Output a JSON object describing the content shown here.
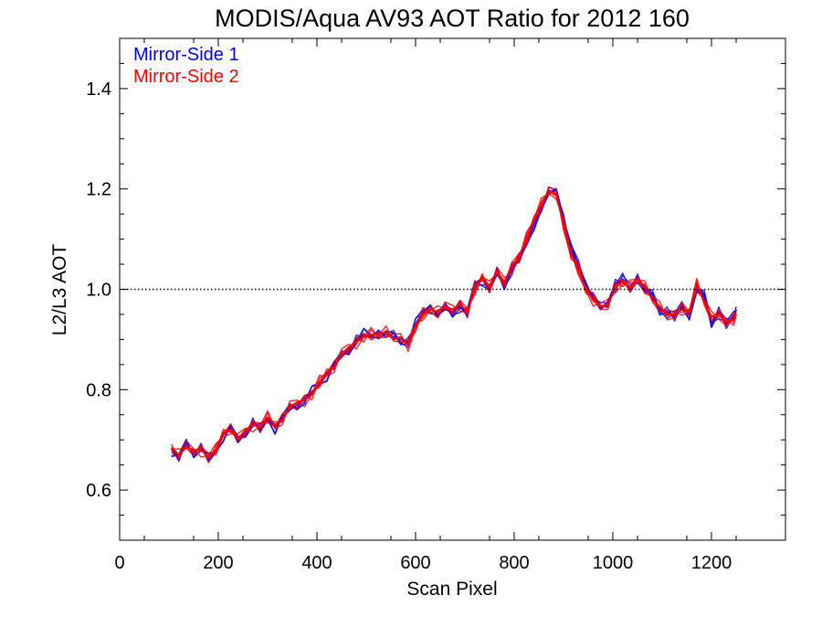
{
  "chart_data": {
    "type": "line",
    "title": "MODIS/Aqua AV93 AOT Ratio for 2012 160",
    "xlabel": "Scan Pixel",
    "ylabel": "L2/L3 AOT",
    "xlim": [
      0,
      1350
    ],
    "ylim": [
      0.5,
      1.5
    ],
    "xticks": [
      0,
      200,
      400,
      600,
      800,
      1000,
      1200
    ],
    "xtick_labels": [
      "0",
      "200",
      "400",
      "600",
      "800",
      "1000",
      "1200"
    ],
    "yticks": [
      0.6,
      0.8,
      1.0,
      1.2,
      1.4
    ],
    "ytick_labels": [
      "0.6",
      "0.8",
      "1.0",
      "1.2",
      "1.4"
    ],
    "reference_line": {
      "y": 1.0,
      "style": "dotted"
    },
    "grid": false,
    "legend_position": "top-left",
    "x": [
      105,
      120,
      135,
      150,
      165,
      180,
      195,
      210,
      225,
      240,
      255,
      270,
      285,
      300,
      315,
      330,
      345,
      360,
      375,
      390,
      405,
      420,
      435,
      450,
      465,
      480,
      495,
      510,
      525,
      540,
      555,
      570,
      585,
      600,
      615,
      630,
      645,
      660,
      675,
      690,
      705,
      720,
      735,
      750,
      765,
      780,
      795,
      810,
      825,
      840,
      855,
      870,
      885,
      900,
      915,
      930,
      945,
      960,
      975,
      990,
      1005,
      1020,
      1035,
      1050,
      1065,
      1080,
      1095,
      1110,
      1125,
      1140,
      1155,
      1170,
      1185,
      1200,
      1215,
      1230,
      1245,
      1250
    ],
    "series": [
      {
        "name": "Mirror-Side 1",
        "color": "#0000ff",
        "values": [
          0.68,
          0.665,
          0.69,
          0.675,
          0.685,
          0.66,
          0.675,
          0.71,
          0.725,
          0.695,
          0.715,
          0.735,
          0.72,
          0.74,
          0.725,
          0.745,
          0.76,
          0.77,
          0.78,
          0.795,
          0.81,
          0.83,
          0.85,
          0.865,
          0.88,
          0.9,
          0.91,
          0.905,
          0.915,
          0.91,
          0.905,
          0.9,
          0.895,
          0.93,
          0.955,
          0.965,
          0.95,
          0.96,
          0.955,
          0.965,
          0.95,
          1.01,
          1.02,
          1.0,
          1.03,
          1.01,
          1.04,
          1.06,
          1.09,
          1.13,
          1.16,
          1.19,
          1.2,
          1.14,
          1.08,
          1.05,
          1.01,
          0.985,
          0.96,
          0.975,
          1.01,
          1.02,
          1.0,
          1.025,
          1.0,
          0.985,
          0.96,
          0.955,
          0.945,
          0.965,
          0.95,
          1.0,
          0.985,
          0.935,
          0.955,
          0.93,
          0.945,
          0.96
        ]
      },
      {
        "name": "Mirror-Side 2",
        "color": "#ff0000",
        "values": [
          0.685,
          0.67,
          0.685,
          0.68,
          0.68,
          0.665,
          0.68,
          0.715,
          0.72,
          0.7,
          0.72,
          0.73,
          0.725,
          0.745,
          0.73,
          0.74,
          0.765,
          0.775,
          0.78,
          0.79,
          0.815,
          0.835,
          0.845,
          0.87,
          0.885,
          0.895,
          0.905,
          0.91,
          0.91,
          0.915,
          0.9,
          0.905,
          0.89,
          0.925,
          0.95,
          0.96,
          0.955,
          0.965,
          0.96,
          0.97,
          0.955,
          1.0,
          1.025,
          1.005,
          1.035,
          1.015,
          1.045,
          1.065,
          1.1,
          1.14,
          1.17,
          1.195,
          1.19,
          1.13,
          1.07,
          1.04,
          1.0,
          0.98,
          0.965,
          0.97,
          1.005,
          1.015,
          1.005,
          1.02,
          1.005,
          0.98,
          0.965,
          0.95,
          0.95,
          0.96,
          0.955,
          1.01,
          0.975,
          0.945,
          0.95,
          0.935,
          0.94,
          0.95
        ]
      }
    ]
  }
}
